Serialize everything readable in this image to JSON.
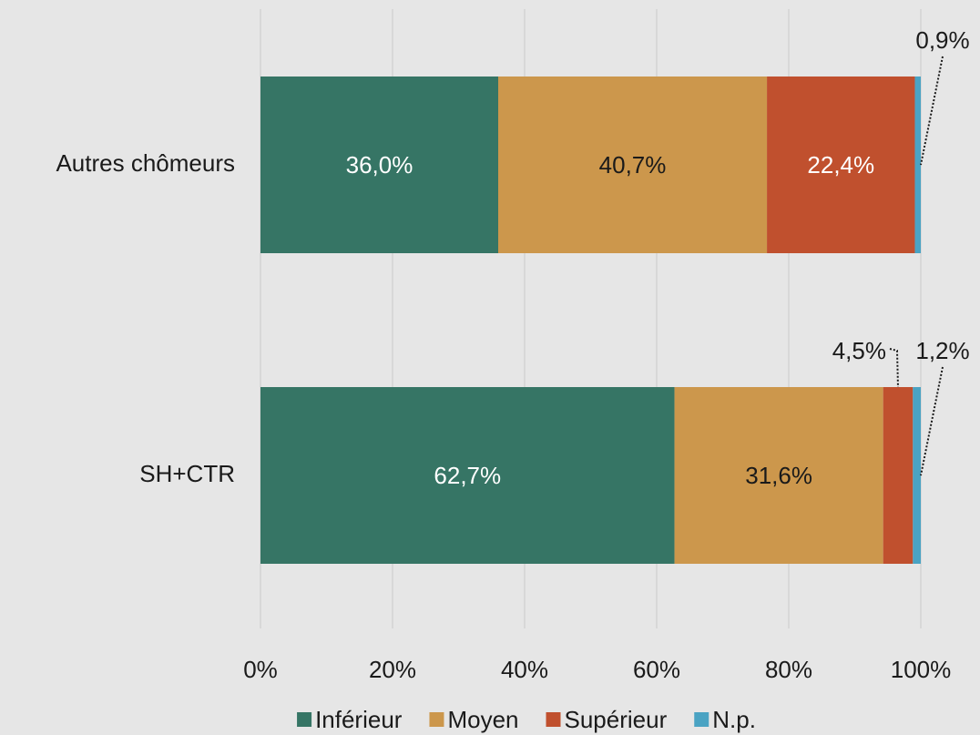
{
  "chart_data": {
    "type": "bar",
    "orientation": "horizontal",
    "stacked": true,
    "categories": [
      "Autres chômeurs",
      "SH+CTR"
    ],
    "series": [
      {
        "name": "Inférieur",
        "color": "#367565",
        "values": [
          36.0,
          62.7
        ],
        "value_labels": [
          "36,0%",
          "62,7%"
        ]
      },
      {
        "name": "Moyen",
        "color": "#cc974c",
        "values": [
          40.7,
          31.6
        ],
        "value_labels": [
          "40,7%",
          "31,6%"
        ]
      },
      {
        "name": "Supérieur",
        "color": "#c0502e",
        "values": [
          22.4,
          4.5
        ],
        "value_labels": [
          "22,4%",
          "4,5%"
        ]
      },
      {
        "name": "N.p.",
        "color": "#4aa3c3",
        "values": [
          0.9,
          1.2
        ],
        "value_labels": [
          "0,9%",
          "1,2%"
        ]
      }
    ],
    "xlim": [
      0,
      100
    ],
    "xticks": [
      {
        "value": 0,
        "label": "0%"
      },
      {
        "value": 20,
        "label": "20%"
      },
      {
        "value": 40,
        "label": "40%"
      },
      {
        "value": 60,
        "label": "60%"
      },
      {
        "value": 80,
        "label": "80%"
      },
      {
        "value": 100,
        "label": "100%"
      }
    ],
    "grid": true,
    "legend": "bottom"
  }
}
